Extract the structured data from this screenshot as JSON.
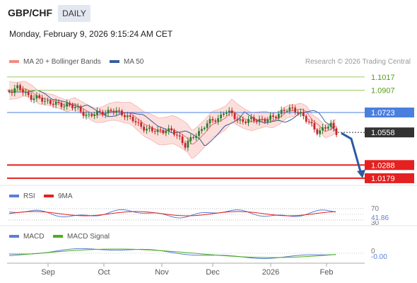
{
  "header": {
    "symbol": "GBP/CHF",
    "timeframe": "DAILY",
    "datetime": "Monday, February 9, 2026 9:15:24 AM CET"
  },
  "legend": {
    "bb_label": "MA 20 + Bollinger Bands",
    "ma50_label": "MA 50",
    "bb_color": "#f28b82",
    "ma50_color": "#3a5f9c",
    "credit": "Research © 2026 Trading Central"
  },
  "levels": [
    {
      "value": 1.1017,
      "label": "1.1017",
      "kind": "resistance",
      "color": "#9ccc65"
    },
    {
      "value": 1.0907,
      "label": "1.0907",
      "kind": "resistance",
      "color": "#9ccc65"
    },
    {
      "value": 1.0723,
      "label": "1.0723",
      "kind": "pivot",
      "color": "#4a7fe0"
    },
    {
      "value": 1.0558,
      "label": "1.0558",
      "kind": "last",
      "color": "#333333"
    },
    {
      "value": 1.0288,
      "label": "1.0288",
      "kind": "support",
      "color": "#e52020"
    },
    {
      "value": 1.0179,
      "label": "1.0179",
      "kind": "support",
      "color": "#e52020"
    }
  ],
  "chart_data": [
    {
      "type": "candlestick",
      "x_ticks": [
        "Sep",
        "Oct",
        "Nov",
        "Dec",
        "2026",
        "Feb"
      ],
      "ylim": [
        1.012,
        1.108
      ],
      "colors": {
        "up": "#2e7d32",
        "down": "#c62828"
      },
      "series": [
        {
          "name": "MA 20 + Bollinger Bands"
        },
        {
          "name": "MA 50"
        }
      ],
      "forecast_arrow": {
        "from": 1.0558,
        "to": 1.0179
      }
    },
    {
      "type": "line",
      "series": [
        {
          "name": "RSI",
          "color": "#5b7fd6"
        },
        {
          "name": "9MA",
          "color": "#e52020"
        }
      ],
      "ticks": [
        "70",
        "30"
      ],
      "last_value": "41.86"
    },
    {
      "type": "line",
      "series": [
        {
          "name": "MACD",
          "color": "#5b7fd6"
        },
        {
          "name": "MACD Signal",
          "color": "#4caf1e"
        }
      ],
      "ticks": [
        "0"
      ],
      "last_value": "-0.00"
    }
  ]
}
